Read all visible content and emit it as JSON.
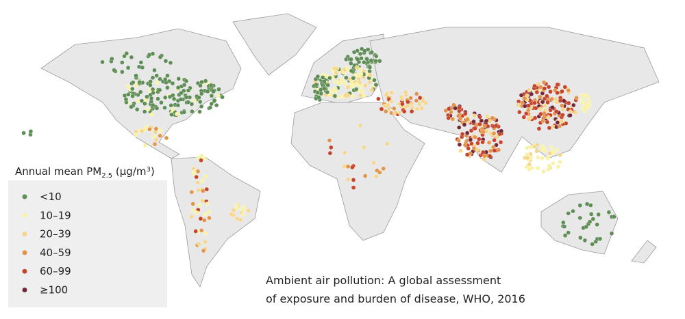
{
  "legend": {
    "title": [
      "Annual mean PM",
      "2.5",
      " (μg/m",
      "3",
      ")"
    ],
    "items": [
      {
        "label": "<10",
        "color": "#5f8d56"
      },
      {
        "label": "10–19",
        "color": "#f7f2a6"
      },
      {
        "label": "20–39",
        "color": "#f5d68a"
      },
      {
        "label": "40–59",
        "color": "#e0954a"
      },
      {
        "label": "60–99",
        "color": "#c4452c"
      },
      {
        "label": "≥100",
        "color": "#73283a"
      }
    ]
  },
  "caption": [
    "Ambient air pollution: A global assessment",
    "of exposure and burden of disease, WHO, 2016"
  ]
}
